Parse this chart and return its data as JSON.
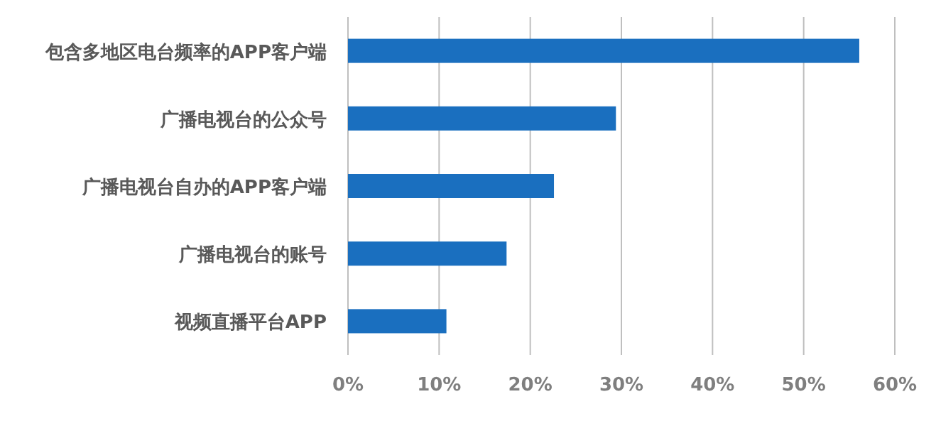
{
  "chart_data": {
    "type": "bar",
    "orientation": "horizontal",
    "categories": [
      "包含多地区电台频率的APP客户端",
      "广播电视台的公众号",
      "广播电视台自办的APP客户端",
      "广播电视台的账号",
      "视频直播平台APP"
    ],
    "values": [
      56.1,
      29.4,
      22.6,
      17.4,
      10.8
    ],
    "color": "#1a6fbf",
    "xlim": [
      0,
      60
    ],
    "xticks": [
      {
        "value": 0,
        "label": "0%"
      },
      {
        "value": 10,
        "label": "10%"
      },
      {
        "value": 20,
        "label": "20%"
      },
      {
        "value": 30,
        "label": "30%"
      },
      {
        "value": 40,
        "label": "40%"
      },
      {
        "value": 50,
        "label": "50%"
      },
      {
        "value": 60,
        "label": "60%"
      }
    ],
    "grid": "x"
  }
}
